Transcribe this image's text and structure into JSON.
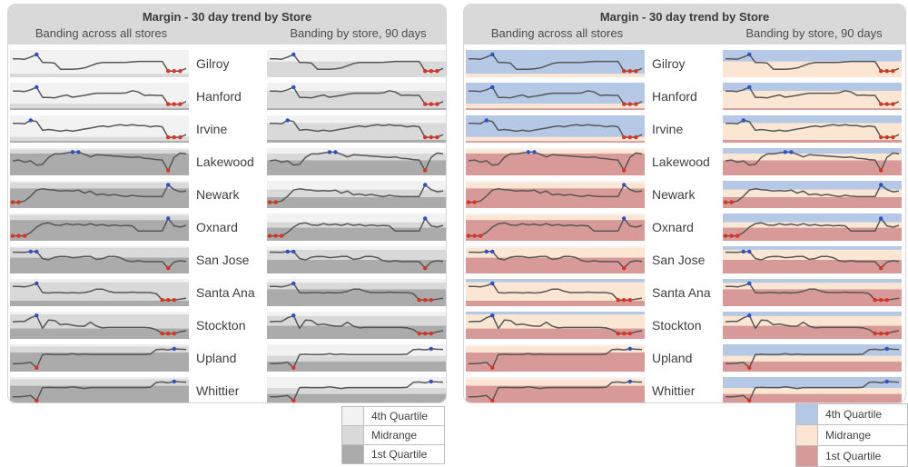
{
  "panels": [
    {
      "id": "gray",
      "title": "Margin - 30 day trend by Store",
      "col_a_label": "Banding across all stores",
      "col_b_label": "Banding by store, 90 days",
      "palette": "gray"
    },
    {
      "id": "color",
      "title": "Margin - 30 day trend by Store",
      "col_a_label": "Banding across all stores",
      "col_b_label": "Banding by store, 90 days",
      "palette": "color"
    }
  ],
  "legend": {
    "items": [
      {
        "key": "q4",
        "label": "4th Quartile"
      },
      {
        "key": "mid",
        "label": "Midrange"
      },
      {
        "key": "q1",
        "label": "1st Quartile"
      }
    ]
  },
  "palettes": {
    "gray": {
      "q4": "#f2f2f2",
      "mid": "#d9d9d9",
      "q1": "#ababab",
      "w": "#efefef"
    },
    "color": {
      "q4": "#b5c9e6",
      "mid": "#fbe6d4",
      "q1": "#d89a98",
      "w": "#f8f3ee"
    }
  },
  "markers": {
    "high_color": "#2b50c8",
    "low_color": "#e0301e",
    "line_color": "#575757"
  },
  "chart_data": {
    "type": "line",
    "title": "Margin - 30 day trend by Store",
    "subtitle_columns": [
      "Banding across all stores",
      "Banding by store, 90 days"
    ],
    "x_count": 30,
    "x_unit": "day",
    "y_note": "relative margin level per row, 0 = bottom of cell scale, 1 = top; blue marker = period high, red markers = period low(s)",
    "band_note": "bands listed top-to-bottom as fraction of cell height; q4 = 4th Quartile, mid = Midrange, q1 = 1st Quartile, w = above-band gap",
    "stores": [
      {
        "name": "Gilroy",
        "values": [
          0.72,
          0.72,
          0.7,
          0.8,
          0.92,
          0.55,
          0.55,
          0.52,
          0.24,
          0.24,
          0.24,
          0.26,
          0.3,
          0.4,
          0.5,
          0.55,
          0.55,
          0.55,
          0.55,
          0.56,
          0.58,
          0.6,
          0.6,
          0.6,
          0.6,
          0.6,
          0.16,
          0.16,
          0.16,
          0.28
        ],
        "high_idx": [
          4
        ],
        "low_idx": [
          26,
          27,
          28
        ],
        "bands_across": [
          {
            "band": "q4",
            "frac": 0.87
          },
          {
            "band": "mid",
            "frac": 0.13
          }
        ],
        "bands_by_store": [
          {
            "band": "q4",
            "frac": 0.42
          },
          {
            "band": "mid",
            "frac": 0.58
          }
        ]
      },
      {
        "name": "Hanford",
        "values": [
          0.74,
          0.74,
          0.72,
          0.8,
          0.92,
          0.45,
          0.45,
          0.43,
          0.5,
          0.56,
          0.46,
          0.5,
          0.54,
          0.6,
          0.64,
          0.64,
          0.64,
          0.64,
          0.64,
          0.66,
          0.76,
          0.7,
          0.54,
          0.56,
          0.54,
          0.54,
          0.14,
          0.14,
          0.14,
          0.26
        ],
        "high_idx": [
          4
        ],
        "low_idx": [
          26,
          27,
          28
        ],
        "bands_across": [
          {
            "band": "q4",
            "frac": 0.77
          },
          {
            "band": "mid",
            "frac": 0.17
          },
          {
            "band": "q1",
            "frac": 0.06
          }
        ],
        "bands_by_store": [
          {
            "band": "q4",
            "frac": 0.3
          },
          {
            "band": "mid",
            "frac": 0.64
          },
          {
            "band": "q1",
            "frac": 0.06
          }
        ]
      },
      {
        "name": "Irvine",
        "values": [
          0.76,
          0.76,
          0.74,
          0.9,
          0.84,
          0.44,
          0.48,
          0.44,
          0.4,
          0.45,
          0.4,
          0.45,
          0.5,
          0.54,
          0.6,
          0.64,
          0.6,
          0.66,
          0.7,
          0.66,
          0.7,
          0.66,
          0.66,
          0.6,
          0.64,
          0.6,
          0.12,
          0.12,
          0.12,
          0.24
        ],
        "high_idx": [
          3
        ],
        "low_idx": [
          26,
          27,
          28
        ],
        "bands_across": [
          {
            "band": "q4",
            "frac": 0.79
          },
          {
            "band": "mid",
            "frac": 0.15
          },
          {
            "band": "q1",
            "frac": 0.06
          }
        ],
        "bands_by_store": [
          {
            "band": "q4",
            "frac": 0.28
          },
          {
            "band": "mid",
            "frac": 0.62
          },
          {
            "band": "q1",
            "frac": 0.1
          }
        ]
      },
      {
        "name": "Lakewood",
        "values": [
          0.54,
          0.58,
          0.48,
          0.54,
          0.34,
          0.38,
          0.7,
          0.86,
          0.86,
          0.9,
          0.94,
          0.94,
          0.84,
          0.72,
          0.82,
          0.8,
          0.78,
          0.76,
          0.74,
          0.72,
          0.7,
          0.72,
          0.66,
          0.64,
          0.6,
          0.58,
          0.1,
          0.7,
          0.9,
          0.86
        ],
        "high_idx": [
          10,
          11
        ],
        "low_idx": [
          26
        ],
        "bands_across": [
          {
            "band": "w",
            "frac": 0.06
          },
          {
            "band": "mid",
            "frac": 0.14
          },
          {
            "band": "q1",
            "frac": 0.8
          }
        ],
        "bands_by_store": [
          {
            "band": "q4",
            "frac": 0.2
          },
          {
            "band": "mid",
            "frac": 0.25
          },
          {
            "band": "q1",
            "frac": 0.55
          }
        ]
      },
      {
        "name": "Newark",
        "values": [
          0.14,
          0.14,
          0.2,
          0.42,
          0.7,
          0.76,
          0.72,
          0.7,
          0.66,
          0.68,
          0.66,
          0.7,
          0.56,
          0.66,
          0.48,
          0.52,
          0.46,
          0.5,
          0.44,
          0.4,
          0.46,
          0.42,
          0.4,
          0.4,
          0.4,
          0.4,
          0.94,
          0.72,
          0.62,
          0.66
        ],
        "high_idx": [
          26
        ],
        "low_idx": [
          0,
          1
        ],
        "bands_across": [
          {
            "band": "w",
            "frac": 0.07
          },
          {
            "band": "mid",
            "frac": 0.21
          },
          {
            "band": "q1",
            "frac": 0.72
          }
        ],
        "bands_by_store": [
          {
            "band": "q4",
            "frac": 0.32
          },
          {
            "band": "mid",
            "frac": 0.28
          },
          {
            "band": "q1",
            "frac": 0.4
          }
        ]
      },
      {
        "name": "Oxnard",
        "values": [
          0.1,
          0.1,
          0.1,
          0.26,
          0.5,
          0.66,
          0.7,
          0.6,
          0.58,
          0.66,
          0.6,
          0.64,
          0.58,
          0.66,
          0.58,
          0.62,
          0.56,
          0.6,
          0.56,
          0.58,
          0.56,
          0.32,
          0.32,
          0.32,
          0.32,
          0.32,
          0.9,
          0.56,
          0.5,
          0.58
        ],
        "high_idx": [
          26
        ],
        "low_idx": [
          0,
          1,
          2
        ],
        "bands_across": [
          {
            "band": "w",
            "frac": 0.06
          },
          {
            "band": "mid",
            "frac": 0.18
          },
          {
            "band": "q1",
            "frac": 0.76
          }
        ],
        "bands_by_store": [
          {
            "band": "q4",
            "frac": 0.32
          },
          {
            "band": "mid",
            "frac": 0.2
          },
          {
            "band": "q1",
            "frac": 0.48
          }
        ]
      },
      {
        "name": "San Jose",
        "values": [
          0.85,
          0.85,
          0.84,
          0.88,
          0.88,
          0.56,
          0.5,
          0.62,
          0.66,
          0.65,
          0.6,
          0.62,
          0.66,
          0.66,
          0.52,
          0.56,
          0.66,
          0.66,
          0.6,
          0.46,
          0.42,
          0.46,
          0.42,
          0.42,
          0.42,
          0.42,
          0.12,
          0.4,
          0.46,
          0.43
        ],
        "high_idx": [
          3,
          4
        ],
        "low_idx": [
          26
        ],
        "bands_across": [
          {
            "band": "w",
            "frac": 0.06
          },
          {
            "band": "mid",
            "frac": 0.36
          },
          {
            "band": "q1",
            "frac": 0.58
          }
        ],
        "bands_by_store": [
          {
            "band": "q4",
            "frac": 0.13
          },
          {
            "band": "mid",
            "frac": 0.37
          },
          {
            "band": "q1",
            "frac": 0.5
          }
        ]
      },
      {
        "name": "Santa Ana",
        "values": [
          0.78,
          0.78,
          0.76,
          0.82,
          0.92,
          0.5,
          0.48,
          0.5,
          0.5,
          0.48,
          0.5,
          0.48,
          0.5,
          0.56,
          0.66,
          0.66,
          0.56,
          0.5,
          0.5,
          0.5,
          0.52,
          0.5,
          0.5,
          0.5,
          0.45,
          0.16,
          0.16,
          0.16,
          0.2,
          0.24
        ],
        "high_idx": [
          4
        ],
        "low_idx": [
          25,
          26,
          27
        ],
        "bands_across": [
          {
            "band": "q4",
            "frac": 0.12
          },
          {
            "band": "mid",
            "frac": 0.68
          },
          {
            "band": "q1",
            "frac": 0.2
          }
        ],
        "bands_by_store": [
          {
            "band": "q4",
            "frac": 0.14
          },
          {
            "band": "mid",
            "frac": 0.24
          },
          {
            "band": "q1",
            "frac": 0.62
          }
        ]
      },
      {
        "name": "Stockton",
        "values": [
          0.66,
          0.68,
          0.68,
          0.84,
          0.95,
          0.36,
          0.74,
          0.72,
          0.52,
          0.56,
          0.5,
          0.46,
          0.46,
          0.64,
          0.46,
          0.38,
          0.4,
          0.4,
          0.4,
          0.4,
          0.4,
          0.4,
          0.4,
          0.38,
          0.3,
          0.12,
          0.12,
          0.12,
          0.2,
          0.25
        ],
        "high_idx": [
          4
        ],
        "low_idx": [
          25,
          26,
          27
        ],
        "bands_across": [
          {
            "band": "q4",
            "frac": 0.1
          },
          {
            "band": "mid",
            "frac": 0.52
          },
          {
            "band": "q1",
            "frac": 0.38
          }
        ],
        "bands_by_store": [
          {
            "band": "q4",
            "frac": 0.16
          },
          {
            "band": "mid",
            "frac": 0.36
          },
          {
            "band": "q1",
            "frac": 0.48
          }
        ]
      },
      {
        "name": "Upland",
        "values": [
          0.24,
          0.24,
          0.26,
          0.3,
          0.05,
          0.66,
          0.67,
          0.66,
          0.66,
          0.66,
          0.7,
          0.65,
          0.68,
          0.66,
          0.66,
          0.66,
          0.66,
          0.66,
          0.66,
          0.66,
          0.66,
          0.66,
          0.66,
          0.68,
          0.88,
          0.9,
          0.87,
          0.92,
          0.9,
          0.89
        ],
        "high_idx": [
          27
        ],
        "low_idx": [
          4
        ],
        "bands_across": [
          {
            "band": "w",
            "frac": 0.08
          },
          {
            "band": "mid",
            "frac": 0.22
          },
          {
            "band": "q1",
            "frac": 0.7
          }
        ],
        "bands_by_store": [
          {
            "band": "q4",
            "frac": 0.42
          },
          {
            "band": "mid",
            "frac": 0.21
          },
          {
            "band": "q1",
            "frac": 0.37
          }
        ]
      },
      {
        "name": "Whittier",
        "values": [
          0.22,
          0.22,
          0.24,
          0.28,
          0.05,
          0.64,
          0.65,
          0.64,
          0.64,
          0.64,
          0.68,
          0.64,
          0.6,
          0.64,
          0.64,
          0.64,
          0.64,
          0.64,
          0.64,
          0.64,
          0.64,
          0.64,
          0.64,
          0.66,
          0.88,
          0.9,
          0.86,
          0.92,
          0.9,
          0.89
        ],
        "high_idx": [
          27
        ],
        "low_idx": [
          4
        ],
        "bands_across": [
          {
            "band": "w",
            "frac": 0.08
          },
          {
            "band": "mid",
            "frac": 0.24
          },
          {
            "band": "q1",
            "frac": 0.68
          }
        ],
        "bands_by_store": [
          {
            "band": "q4",
            "frac": 0.4
          },
          {
            "band": "mid",
            "frac": 0.22
          },
          {
            "band": "q1",
            "frac": 0.38
          }
        ]
      }
    ]
  }
}
